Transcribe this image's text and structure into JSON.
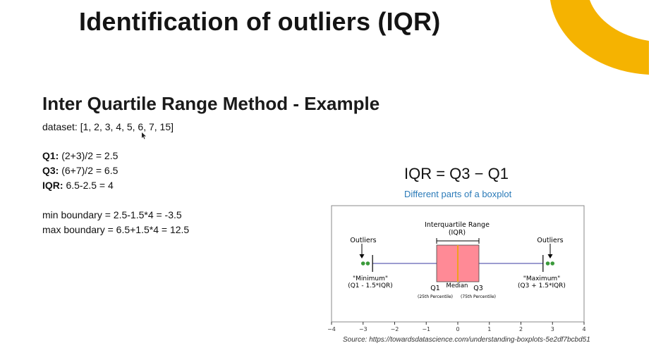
{
  "slide": {
    "title": "Identification of outliers (IQR)",
    "subtitle": "Inter Quartile Range Method - Example",
    "dataset_line": "dataset: [1, 2, 3, 4, 5, 6, 7, 15]",
    "q1_label": "Q1:",
    "q1_value": " (2+3)/2 = 2.5",
    "q3_label": "Q3:",
    "q3_value": " (6+7)/2 = 6.5",
    "iqr_label": "IQR:",
    "iqr_value": " 6.5-2.5 = 4",
    "min_boundary": "min boundary =  2.5-1.5*4 = -3.5",
    "max_boundary": "max boundary = 6.5+1.5*4 = 12.5",
    "iqr_formula": "IQR = Q3 − Q1",
    "source": "Source: https://towardsdatascience.com/understanding-boxplots-5e2df7bcbd51",
    "accent_color": "#f5b301"
  },
  "boxplot": {
    "title": "Different parts of a boxplot",
    "title_color": "#2a7ab8",
    "box_color": "#ff8a96",
    "median_color": "#f0a020",
    "whisker_color": "#3a3aa0",
    "outlier_color": "#3a9a3a",
    "label_outliers_left": "Outliers",
    "label_outliers_right": "Outliers",
    "label_iqr": "Interquartile Range",
    "label_iqr_sub": "(IQR)",
    "label_minimum": "\"Minimum\"",
    "label_minimum_sub": "(Q1 - 1.5*IQR)",
    "label_maximum": "\"Maximum\"",
    "label_maximum_sub": "(Q3 + 1.5*IQR)",
    "label_q1": "Q1",
    "label_q1_sub": "(25th Percentile)",
    "label_median": "Median",
    "label_q3": "Q3",
    "label_q3_sub": "(75th Percentile)",
    "axis": {
      "min": -4,
      "max": 4,
      "ticks": [
        -4,
        -3,
        -2,
        -1,
        0,
        1,
        2,
        3,
        4
      ],
      "tick_labels": [
        "−4",
        "−3",
        "−2",
        "−1",
        "0",
        "1",
        "2",
        "3",
        "4"
      ]
    },
    "q1": -0.67,
    "median": 0,
    "q3": 0.67,
    "whisker_min": -2.7,
    "whisker_max": 2.7,
    "outliers": [
      -3.0,
      -2.85,
      2.85,
      3.0
    ]
  }
}
